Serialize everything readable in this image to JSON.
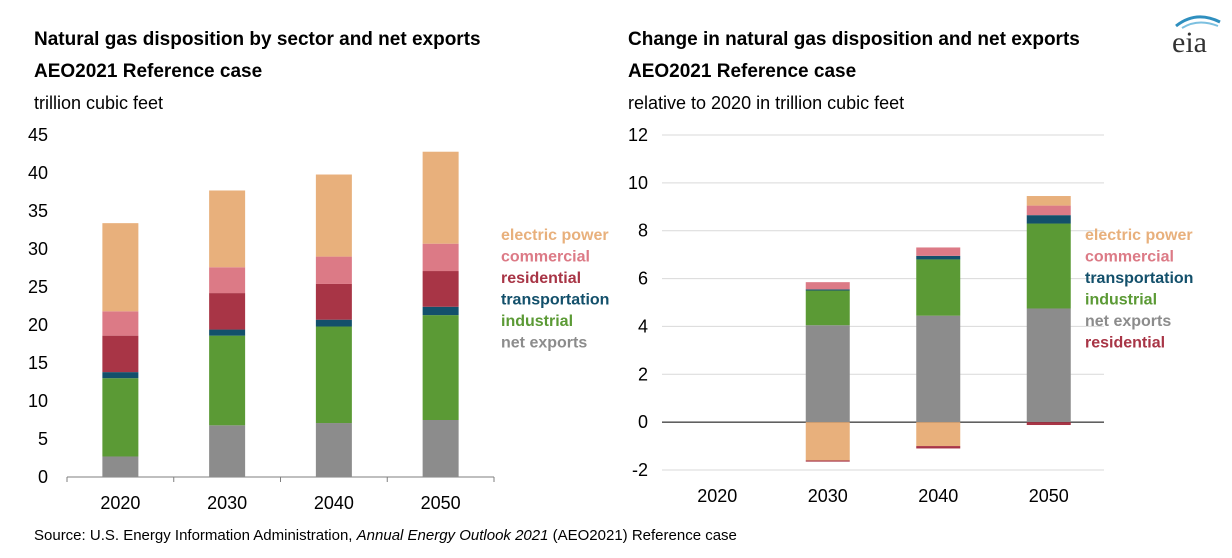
{
  "source": {
    "prefix": "Source: U.S. Energy Information Administration, ",
    "italic": "Annual Energy Outlook 2021",
    "suffix": " (AEO2021) Reference case"
  },
  "logo": {
    "text": "eia"
  },
  "colors": {
    "net exports": "#8c8c8c",
    "industrial": "#5b9a35",
    "transportation": "#13506b",
    "residential": "#a83546",
    "commercial": "#dc7a86",
    "electric power": "#e8b07c"
  },
  "chart_data": [
    {
      "type": "bar",
      "stacked": true,
      "title": "Natural gas disposition by sector and net exports",
      "subtitle": "AEO2021 Reference case",
      "ylabel": "trillion cubic feet",
      "categories": [
        "2020",
        "2030",
        "2040",
        "2050"
      ],
      "ylim": [
        0,
        45
      ],
      "yticks": [
        "0",
        "5",
        "10",
        "15",
        "20",
        "25",
        "30",
        "35",
        "40",
        "45"
      ],
      "legend": [
        "electric power",
        "commercial",
        "residential",
        "transportation",
        "industrial",
        "net exports"
      ],
      "series": [
        {
          "name": "net exports",
          "values": [
            2.7,
            6.8,
            7.1,
            7.5
          ]
        },
        {
          "name": "industrial",
          "values": [
            10.3,
            11.8,
            12.7,
            13.8
          ]
        },
        {
          "name": "transportation",
          "values": [
            0.8,
            0.8,
            0.9,
            1.1
          ]
        },
        {
          "name": "residential",
          "values": [
            4.8,
            4.8,
            4.7,
            4.7
          ]
        },
        {
          "name": "commercial",
          "values": [
            3.2,
            3.4,
            3.6,
            3.6
          ]
        },
        {
          "name": "electric power",
          "values": [
            11.6,
            10.1,
            10.8,
            12.1
          ]
        }
      ]
    },
    {
      "type": "bar",
      "stacked": true,
      "title": "Change in natural gas disposition and net exports",
      "subtitle": "AEO2021 Reference case",
      "ylabel": "relative to 2020 in trillion cubic feet",
      "categories": [
        "2020",
        "2030",
        "2040",
        "2050"
      ],
      "ylim": [
        -2,
        12
      ],
      "yticks": [
        "-2",
        "0",
        "2",
        "4",
        "6",
        "8",
        "10",
        "12"
      ],
      "legend": [
        "electric power",
        "commercial",
        "transportation",
        "industrial",
        "net exports",
        "residential"
      ],
      "series": [
        {
          "name": "net exports",
          "values": [
            0,
            4.05,
            4.45,
            4.75
          ]
        },
        {
          "name": "industrial",
          "values": [
            0,
            1.45,
            2.35,
            3.55
          ]
        },
        {
          "name": "transportation",
          "values": [
            0,
            0.05,
            0.15,
            0.35
          ]
        },
        {
          "name": "commercial",
          "values": [
            0,
            0.3,
            0.35,
            0.4
          ]
        },
        {
          "name": "electric power",
          "values": [
            0,
            -1.6,
            -1.0,
            0.4
          ]
        },
        {
          "name": "residential",
          "values": [
            0,
            -0.05,
            -0.1,
            -0.12
          ]
        }
      ]
    }
  ]
}
